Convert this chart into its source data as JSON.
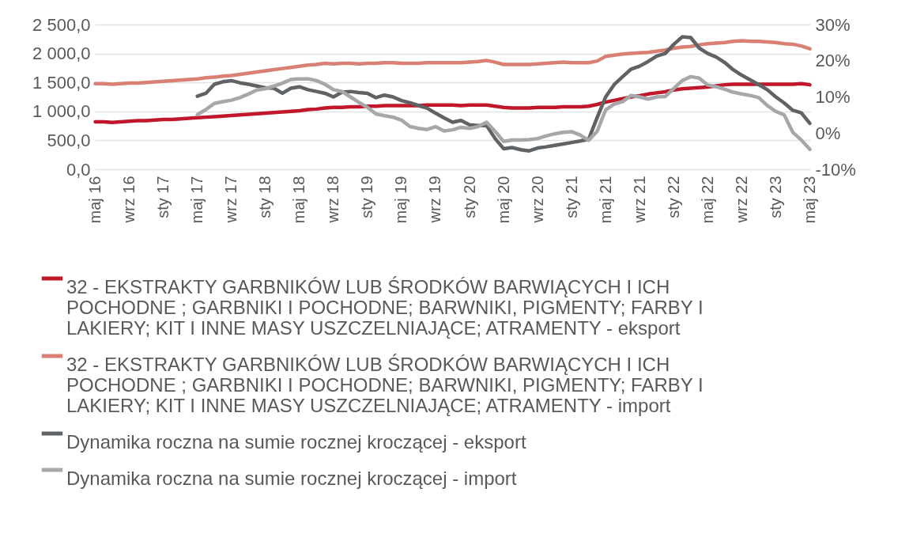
{
  "chart_data": {
    "type": "line",
    "categories": [
      "maj 16",
      null,
      null,
      null,
      "wrz 16",
      null,
      null,
      null,
      "sty 17",
      null,
      null,
      null,
      "maj 17",
      null,
      null,
      null,
      "wrz 17",
      null,
      null,
      null,
      "sty 18",
      null,
      null,
      null,
      "maj 18",
      null,
      null,
      null,
      "wrz 18",
      null,
      null,
      null,
      "sty 19",
      null,
      null,
      null,
      "maj 19",
      null,
      null,
      null,
      "wrz 19",
      null,
      null,
      null,
      "sty 20",
      null,
      null,
      null,
      "maj 20",
      null,
      null,
      null,
      "wrz 20",
      null,
      null,
      null,
      "sty 21",
      null,
      null,
      null,
      "maj 21",
      null,
      null,
      null,
      "wrz 21",
      null,
      null,
      null,
      "sty 22",
      null,
      null,
      null,
      "maj 22",
      null,
      null,
      null,
      "wrz 22",
      null,
      null,
      null,
      "sty 23",
      null,
      null,
      null,
      "maj 23"
    ],
    "series": [
      {
        "name": "32 - EKSTRAKTY GARBNIKÓW LUB ŚRODKÓW BARWIĄCYCH I ICH POCHODNE ; GARBNIKI I POCHODNE; BARWNIKI, PIGMENTY; FARBY I LAKIERY; KIT I INNE MASY USZCZELNIAJĄCE; ATRAMENTY - eksport",
        "color": "#c0182a",
        "values": [
          820,
          820,
          810,
          820,
          830,
          840,
          840,
          850,
          860,
          860,
          870,
          880,
          890,
          900,
          910,
          920,
          930,
          940,
          950,
          960,
          970,
          980,
          990,
          1000,
          1010,
          1030,
          1040,
          1060,
          1070,
          1070,
          1080,
          1080,
          1090,
          1090,
          1100,
          1100,
          1100,
          1100,
          1100,
          1110,
          1110,
          1110,
          1110,
          1100,
          1110,
          1110,
          1110,
          1090,
          1070,
          1060,
          1060,
          1060,
          1070,
          1070,
          1070,
          1080,
          1080,
          1080,
          1090,
          1120,
          1160,
          1190,
          1220,
          1250,
          1270,
          1300,
          1320,
          1340,
          1370,
          1390,
          1400,
          1410,
          1420,
          1440,
          1460,
          1470,
          1470,
          1470,
          1470,
          1470,
          1470,
          1470,
          1470,
          1480,
          1460
        ]
      },
      {
        "name": "32 - EKSTRAKTY GARBNIKÓW LUB ŚRODKÓW BARWIĄCYCH I ICH POCHODNE ; GARBNIKI I POCHODNE; BARWNIKI, PIGMENTY; FARBY I LAKIERY; KIT I INNE MASY USZCZELNIAJĄCE; ATRAMENTY - import",
        "color": "#d98075",
        "values": [
          1480,
          1480,
          1470,
          1480,
          1490,
          1490,
          1500,
          1510,
          1520,
          1530,
          1540,
          1550,
          1560,
          1580,
          1590,
          1610,
          1620,
          1640,
          1660,
          1680,
          1700,
          1720,
          1740,
          1760,
          1780,
          1800,
          1810,
          1830,
          1820,
          1830,
          1830,
          1820,
          1830,
          1830,
          1840,
          1840,
          1830,
          1830,
          1830,
          1840,
          1840,
          1840,
          1840,
          1840,
          1850,
          1860,
          1880,
          1850,
          1810,
          1810,
          1810,
          1810,
          1820,
          1830,
          1840,
          1850,
          1840,
          1840,
          1840,
          1870,
          1950,
          1970,
          1990,
          2000,
          2010,
          2020,
          2040,
          2060,
          2090,
          2110,
          2120,
          2150,
          2170,
          2180,
          2190,
          2210,
          2220,
          2210,
          2210,
          2200,
          2190,
          2170,
          2160,
          2130,
          2080
        ]
      },
      {
        "name": "Dynamika roczna na sumie rocznej kroczącej - eksport",
        "color": "#5f6366",
        "axis": "y2",
        "values": [
          null,
          null,
          null,
          null,
          null,
          null,
          null,
          null,
          null,
          null,
          null,
          null,
          10.2,
          11.0,
          13.5,
          14.2,
          14.5,
          13.9,
          13.5,
          13.0,
          12.5,
          12.4,
          11.0,
          12.4,
          12.8,
          12.0,
          11.5,
          11.0,
          10.0,
          11.3,
          11.5,
          11.2,
          11.0,
          9.8,
          10.5,
          10.0,
          9.0,
          8.4,
          7.6,
          6.9,
          5.5,
          4.2,
          3.0,
          3.5,
          2.3,
          2.1,
          2.1,
          -1.5,
          -4.3,
          -4.0,
          -4.6,
          -4.9,
          -4.1,
          -3.8,
          -3.4,
          -3.0,
          -2.6,
          -2.2,
          -1.7,
          4.3,
          10.0,
          13.4,
          15.6,
          17.7,
          18.5,
          19.8,
          21.3,
          22.0,
          24.5,
          26.6,
          26.4,
          23.5,
          22.0,
          21.0,
          19.5,
          17.5,
          16.0,
          14.7,
          13.4,
          12.0,
          10.0,
          8.3,
          6.3,
          5.6,
          2.7
        ]
      },
      {
        "name": "Dynamika roczna na sumie rocznej kroczącej - import",
        "color": "#a5a7a9",
        "axis": "y2",
        "values": [
          null,
          null,
          null,
          null,
          null,
          null,
          null,
          null,
          null,
          null,
          null,
          null,
          5.1,
          6.5,
          8.2,
          8.7,
          9.1,
          9.8,
          10.8,
          11.9,
          12.3,
          13.0,
          13.8,
          14.8,
          15.0,
          15.0,
          14.5,
          13.5,
          12.0,
          11.5,
          10.0,
          8.5,
          7.1,
          5.3,
          4.8,
          4.4,
          3.6,
          1.8,
          1.3,
          1.0,
          1.8,
          0.6,
          0.9,
          1.6,
          1.3,
          1.8,
          3.0,
          0.5,
          -2.3,
          -1.9,
          -1.9,
          -1.8,
          -1.5,
          -0.8,
          -0.2,
          0.2,
          0.4,
          -0.5,
          -2.0,
          0.5,
          6.4,
          8.0,
          8.7,
          10.4,
          10.0,
          9.4,
          10.0,
          10.1,
          12.3,
          14.5,
          15.6,
          15.2,
          13.3,
          12.8,
          12.1,
          11.3,
          10.8,
          10.4,
          9.8,
          7.6,
          6.0,
          5.0,
          0.2,
          -1.9,
          -4.5
        ]
      }
    ],
    "ylim": [
      0,
      2500
    ],
    "yticks": [
      {
        "value": 0,
        "label": "0,0"
      },
      {
        "value": 500,
        "label": "500,0"
      },
      {
        "value": 1000,
        "label": "1 000,0"
      },
      {
        "value": 1500,
        "label": "1 500,0"
      },
      {
        "value": 2000,
        "label": "2 000,0"
      },
      {
        "value": 2500,
        "label": "2 500,0"
      }
    ],
    "y2lim": [
      -10,
      30
    ],
    "y2ticks": [
      {
        "value": -10,
        "label": "-10%"
      },
      {
        "value": 0,
        "label": "0%"
      },
      {
        "value": 10,
        "label": "10%"
      },
      {
        "value": 20,
        "label": "20%"
      },
      {
        "value": 30,
        "label": "30%"
      }
    ],
    "grid": "y",
    "legend": "bottom",
    "line_style": "solid",
    "marker": "none"
  }
}
